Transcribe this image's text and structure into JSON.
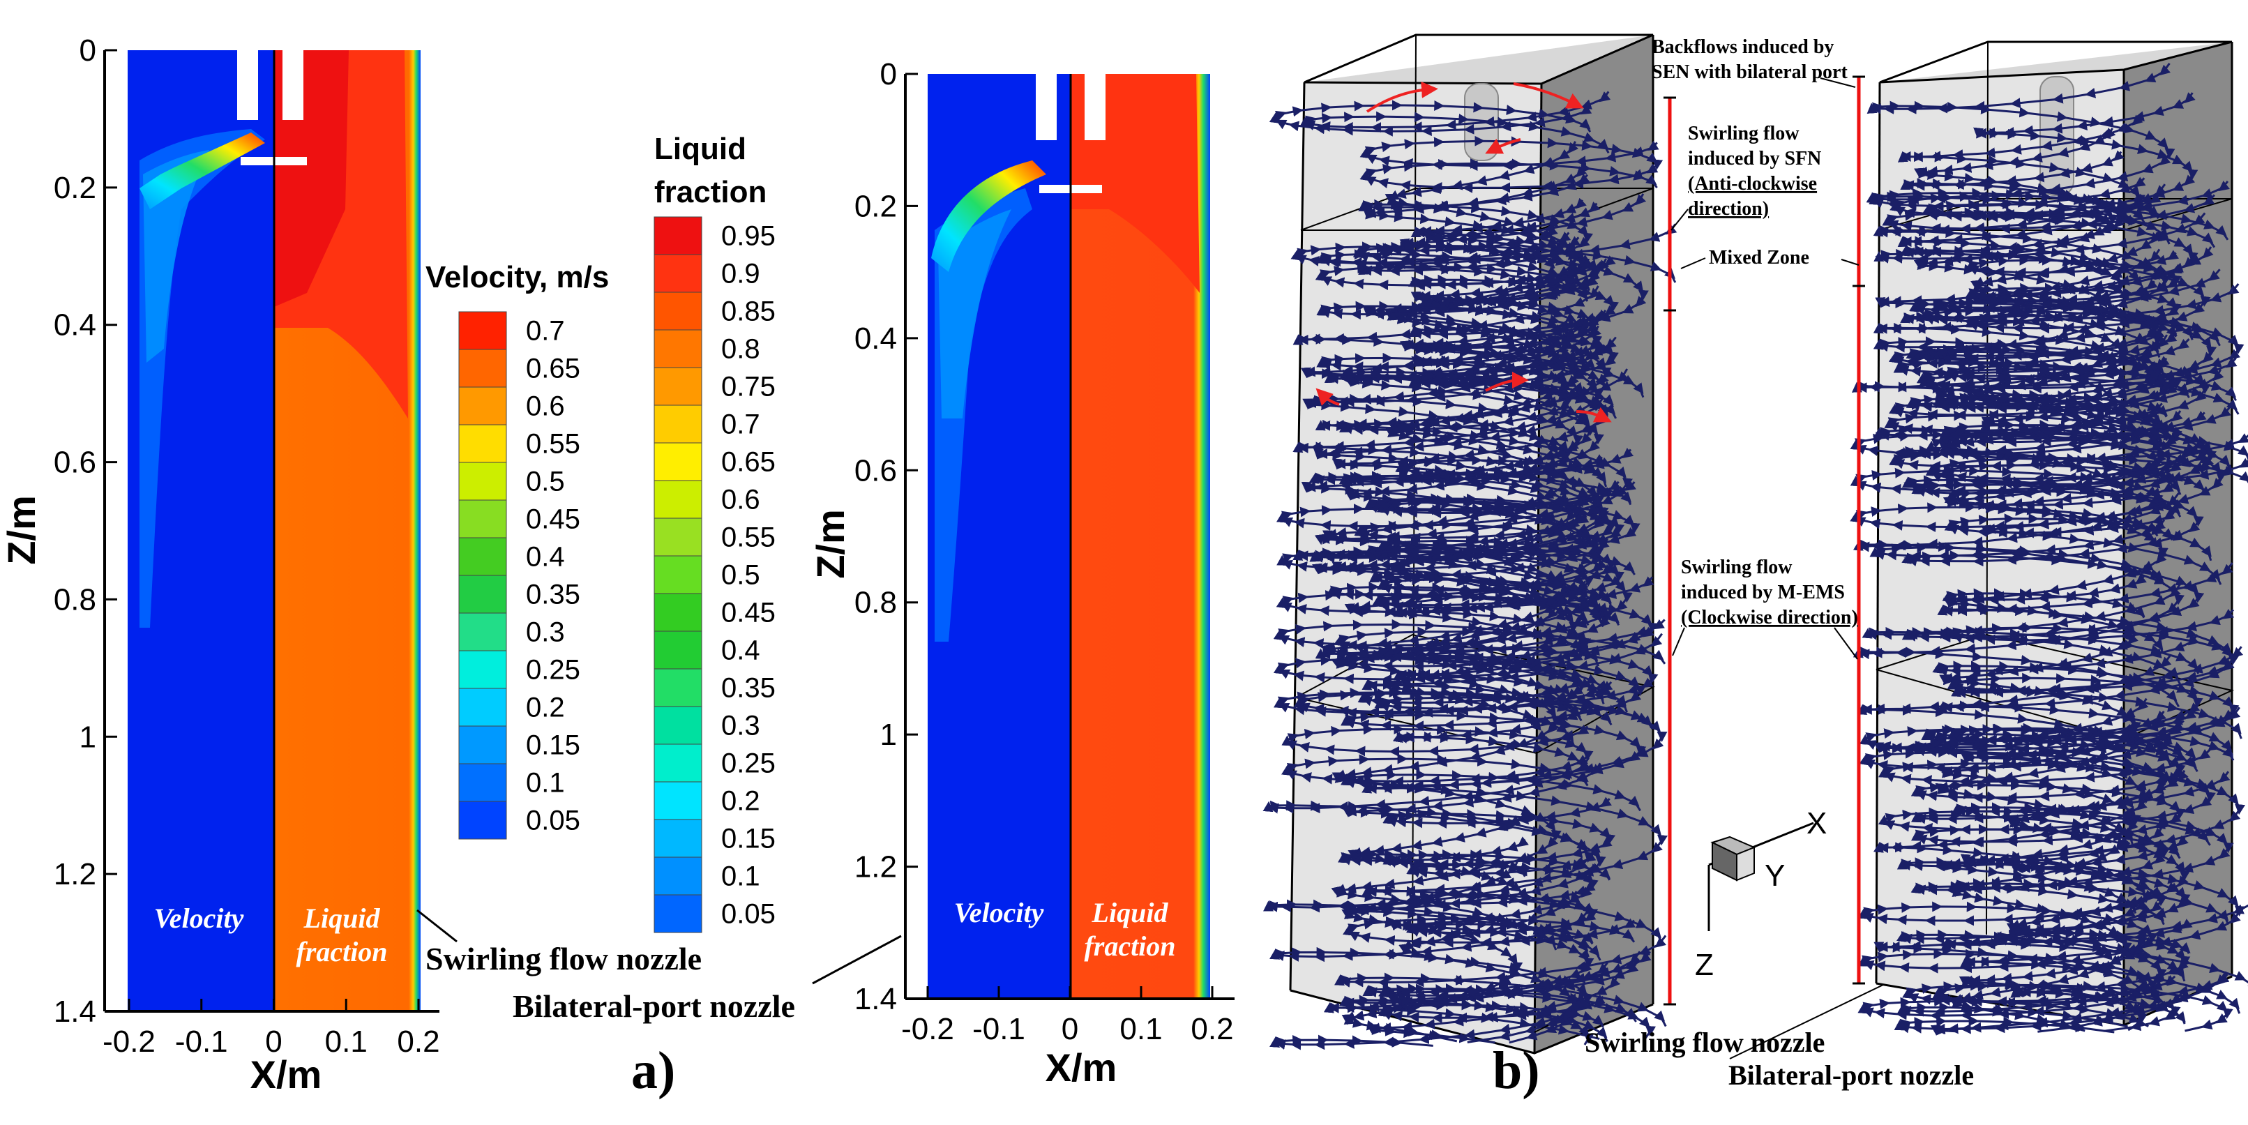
{
  "colors": {
    "liquid_fraction_scale": [
      "#0022ee",
      "#0044ff",
      "#0066ff",
      "#0090ff",
      "#00b8ff",
      "#00e4ff",
      "#00eecc",
      "#00e0a0",
      "#22dd66",
      "#22cc33",
      "#33cc22",
      "#66dd22",
      "#99e022",
      "#ccee00",
      "#ffee00",
      "#ffcc00",
      "#ff9900",
      "#ff7700",
      "#ff5500",
      "#ff3311",
      "#ee1111"
    ],
    "velocity_scale": [
      "#0022ee",
      "#0044ff",
      "#0070ff",
      "#0099ff",
      "#00ccff",
      "#00eedd",
      "#22dd88",
      "#22cc44",
      "#44cc22",
      "#88dd22",
      "#ccee00",
      "#ffdd00",
      "#ff9900",
      "#ff6600",
      "#ff2200"
    ],
    "streamline": "#1a1f66",
    "arrow_red": "#ee2222",
    "marker_red": "#ee1111"
  },
  "panel_a": {
    "label": "a)",
    "x_axis_label": "X/m",
    "y_axis_label": "Z/m",
    "x_ticks": [
      "-0.2",
      "-0.1",
      "0",
      "0.1",
      "0.2"
    ],
    "y_ticks": [
      "0",
      "0.2",
      "0.4",
      "0.6",
      "0.8",
      "1",
      "1.2",
      "1.4"
    ],
    "velocity_legend": {
      "title": "Velocity, m/s",
      "levels": [
        "0.7",
        "0.65",
        "0.6",
        "0.55",
        "0.5",
        "0.45",
        "0.4",
        "0.35",
        "0.3",
        "0.25",
        "0.2",
        "0.15",
        "0.1",
        "0.05"
      ]
    },
    "fraction_legend": {
      "title_line1": "Liquid",
      "title_line2": "fraction",
      "levels": [
        "0.95",
        "0.9",
        "0.85",
        "0.8",
        "0.75",
        "0.7",
        "0.65",
        "0.6",
        "0.55",
        "0.5",
        "0.45",
        "0.4",
        "0.35",
        "0.3",
        "0.25",
        "0.2",
        "0.15",
        "0.1",
        "0.05"
      ]
    },
    "plot1": {
      "left_label": "Velocity",
      "right_label_line1": "Liquid",
      "right_label_line2": "fraction",
      "caption": "Swirling flow nozzle"
    },
    "plot2": {
      "left_label": "Velocity",
      "right_label_line1": "Liquid",
      "right_label_line2": "fraction",
      "caption": "Bilateral-port nozzle"
    }
  },
  "panel_b": {
    "label": "b)",
    "annotations": {
      "backflows_line1": "Backflows induced by",
      "backflows_line2": "SEN with bilateral port",
      "swirl_sfn_line1": "Swirling flow",
      "swirl_sfn_line2": "induced by SFN",
      "swirl_sfn_line3": "(Anti-clockwise",
      "swirl_sfn_line4": "direction)",
      "mixed_zone": "Mixed Zone",
      "swirl_mems_line1": "Swirling flow",
      "swirl_mems_line2": "induced by M-EMS",
      "swirl_mems_line3": "(Clockwise direction)"
    },
    "triad": {
      "x": "X",
      "y": "Y",
      "z": "Z"
    },
    "caption_left": "Swirling  flow nozzle",
    "caption_right": "Bilateral-port nozzle"
  }
}
